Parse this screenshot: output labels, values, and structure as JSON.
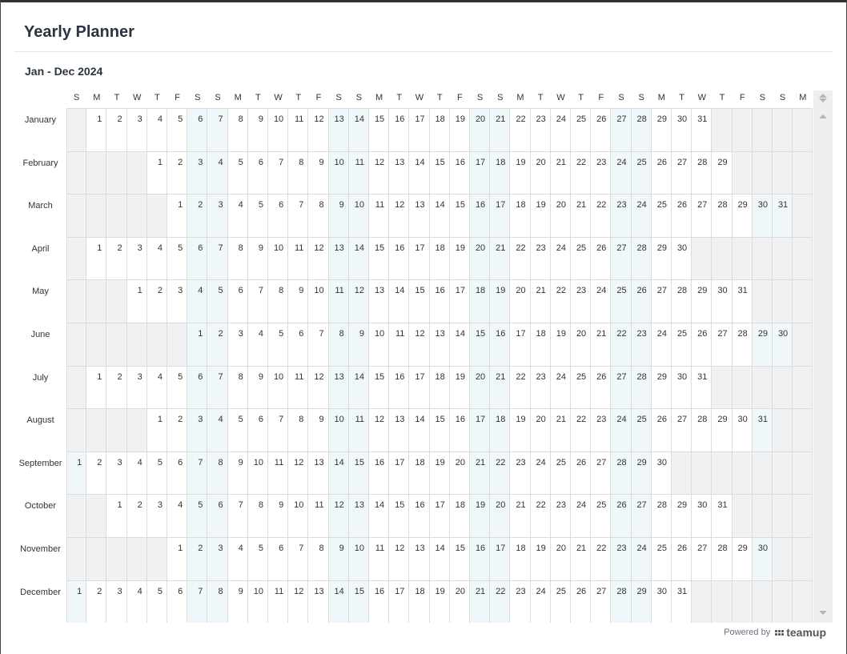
{
  "title": "Yearly Planner",
  "range": "Jan - Dec 2024",
  "weekday_headers": [
    "S",
    "M",
    "T",
    "W",
    "T",
    "F",
    "S",
    "S",
    "M",
    "T",
    "W",
    "T",
    "F",
    "S",
    "S",
    "M",
    "T",
    "W",
    "T",
    "F",
    "S",
    "S",
    "M",
    "T",
    "W",
    "T",
    "F",
    "S",
    "S",
    "M",
    "T",
    "W",
    "T",
    "F",
    "S",
    "S",
    "M"
  ],
  "months": [
    {
      "name": "January",
      "start_weekday": 1,
      "days": 31
    },
    {
      "name": "February",
      "start_weekday": 4,
      "days": 29
    },
    {
      "name": "March",
      "start_weekday": 5,
      "days": 31
    },
    {
      "name": "April",
      "start_weekday": 1,
      "days": 30
    },
    {
      "name": "May",
      "start_weekday": 3,
      "days": 31
    },
    {
      "name": "June",
      "start_weekday": 6,
      "days": 30
    },
    {
      "name": "July",
      "start_weekday": 1,
      "days": 31
    },
    {
      "name": "August",
      "start_weekday": 4,
      "days": 31
    },
    {
      "name": "September",
      "start_weekday": 0,
      "days": 30
    },
    {
      "name": "October",
      "start_weekday": 2,
      "days": 31
    },
    {
      "name": "November",
      "start_weekday": 5,
      "days": 30
    },
    {
      "name": "December",
      "start_weekday": 0,
      "days": 31
    }
  ],
  "colors": {
    "weekend": "#eff7fb",
    "empty": "#f0f1f2",
    "day": "#ffffff"
  },
  "footer": {
    "powered_by": "Powered by",
    "brand": "teamup",
    "brand_icon": "teamup-logo-icon"
  }
}
